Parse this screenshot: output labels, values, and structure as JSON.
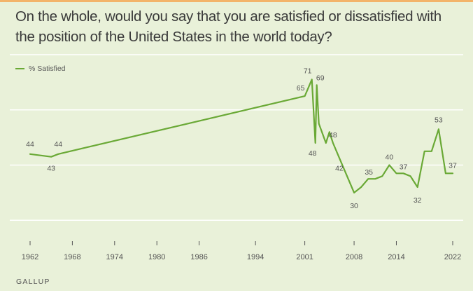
{
  "title": "On the whole, would you say that you are satisfied or dissatisfied with the position of the United States in the world today?",
  "footer": "GALLUP",
  "colors": {
    "line": "#6aa936",
    "background": "#e9f1d9",
    "gridline": "#ffffff",
    "top_border": "#f3b46a"
  },
  "chart_data": {
    "type": "line",
    "title": "On the whole, would you say that you are satisfied or dissatisfied with the position of the United States in the world today?",
    "xlabel": "",
    "ylabel": "",
    "xlim": [
      1962,
      2022
    ],
    "ylim": [
      0,
      80
    ],
    "grid": true,
    "legend": "top-left",
    "x_ticks": [
      "1962",
      "1968",
      "1974",
      "1980",
      "1986",
      "1994",
      "2001",
      "2008",
      "2014",
      "2022"
    ],
    "series": [
      {
        "name": "% Satisfied",
        "points": [
          {
            "x": 1962,
            "y": 44
          },
          {
            "x": 1965,
            "y": 43
          },
          {
            "x": 1966,
            "y": 44
          },
          {
            "x": 2001,
            "y": 65
          },
          {
            "x": 2002,
            "y": 71
          },
          {
            "x": 2002.5,
            "y": 48
          },
          {
            "x": 2002.7,
            "y": 69
          },
          {
            "x": 2003,
            "y": 55
          },
          {
            "x": 2004,
            "y": 48
          },
          {
            "x": 2004.5,
            "y": 52
          },
          {
            "x": 2005,
            "y": 48
          },
          {
            "x": 2006,
            "y": 42
          },
          {
            "x": 2008,
            "y": 30
          },
          {
            "x": 2009,
            "y": 32
          },
          {
            "x": 2010,
            "y": 35
          },
          {
            "x": 2011,
            "y": 35
          },
          {
            "x": 2012,
            "y": 36
          },
          {
            "x": 2013,
            "y": 40
          },
          {
            "x": 2014,
            "y": 37
          },
          {
            "x": 2015,
            "y": 37
          },
          {
            "x": 2016,
            "y": 36
          },
          {
            "x": 2017,
            "y": 32
          },
          {
            "x": 2018,
            "y": 45
          },
          {
            "x": 2019,
            "y": 45
          },
          {
            "x": 2020,
            "y": 53
          },
          {
            "x": 2021,
            "y": 37
          },
          {
            "x": 2022,
            "y": 37
          }
        ]
      }
    ],
    "data_labels": [
      {
        "x": 1962,
        "y": 44,
        "text": "44"
      },
      {
        "x": 1965,
        "y": 43,
        "text": "43"
      },
      {
        "x": 1966,
        "y": 44,
        "text": "44"
      },
      {
        "x": 2001,
        "y": 65,
        "text": "65"
      },
      {
        "x": 2002,
        "y": 71,
        "text": "71"
      },
      {
        "x": 2002.7,
        "y": 69,
        "text": "69"
      },
      {
        "x": 2002.5,
        "y": 48,
        "text": "48"
      },
      {
        "x": 2005,
        "y": 48,
        "text": "48"
      },
      {
        "x": 2006,
        "y": 42,
        "text": "42"
      },
      {
        "x": 2008,
        "y": 30,
        "text": "30"
      },
      {
        "x": 2010,
        "y": 35,
        "text": "35"
      },
      {
        "x": 2013,
        "y": 40,
        "text": "40"
      },
      {
        "x": 2015,
        "y": 37,
        "text": "37"
      },
      {
        "x": 2017,
        "y": 32,
        "text": "32"
      },
      {
        "x": 2020,
        "y": 53,
        "text": "53"
      },
      {
        "x": 2022,
        "y": 37,
        "text": "37"
      }
    ]
  }
}
